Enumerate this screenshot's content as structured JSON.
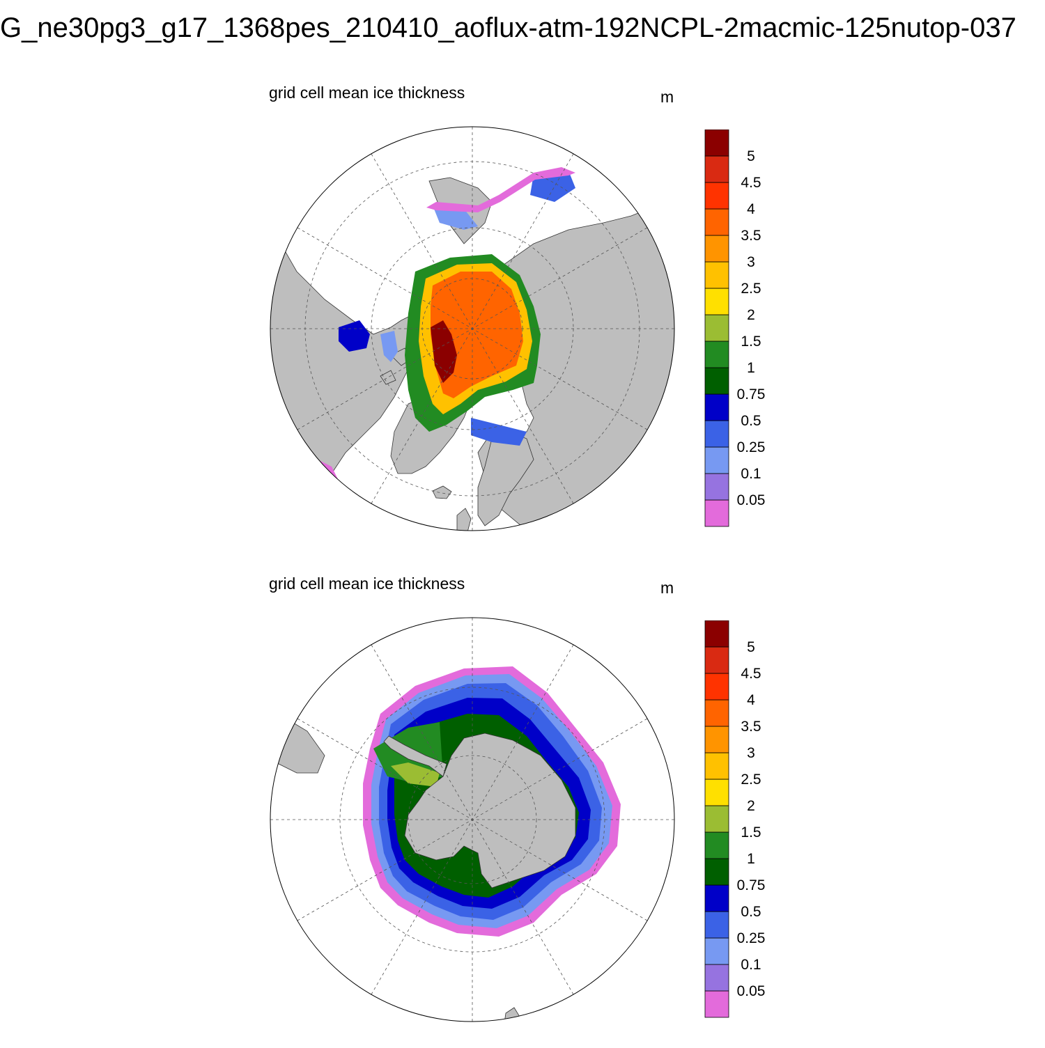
{
  "figure": {
    "title": "G_ne30pg3_g17_1368pes_210410_aoflux-atm-192NCPL-2macmic-125nutop-037"
  },
  "panels": [
    {
      "id": "north",
      "title": "grid cell mean ice thickness",
      "units": "m"
    },
    {
      "id": "south",
      "title": "grid cell mean ice thickness",
      "units": "m"
    }
  ],
  "colorbar": {
    "levels": [
      "0.05",
      "0.1",
      "0.25",
      "0.5",
      "0.75",
      "1",
      "1.5",
      "2",
      "2.5",
      "3",
      "3.5",
      "4",
      "4.5",
      "5"
    ],
    "colors": [
      "#e36bdb",
      "#9673e0",
      "#7799f2",
      "#3b62e6",
      "#0000c8",
      "#005f00",
      "#228b22",
      "#9bbd33",
      "#ffe000",
      "#ffc100",
      "#ff9400",
      "#ff6400",
      "#ff3300",
      "#d92a12",
      "#8b0000"
    ]
  },
  "map_colors": {
    "land": "#bebebe",
    "ocean": "#ffffff",
    "grid": "#555555"
  }
}
